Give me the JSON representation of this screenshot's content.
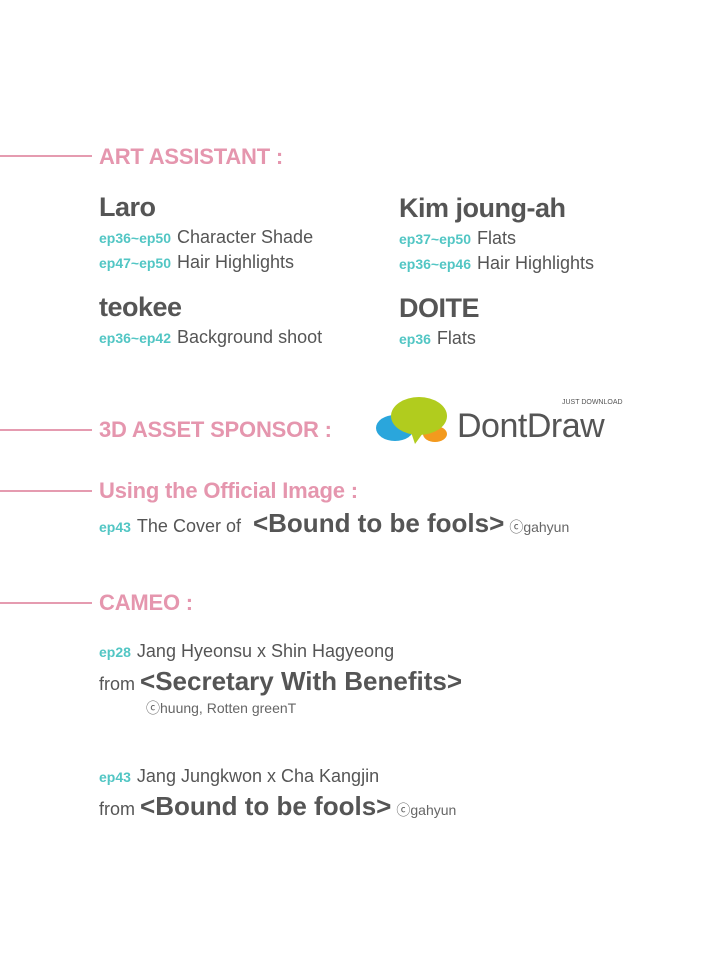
{
  "colors": {
    "heading": "#e596ae",
    "episode": "#52c6c4",
    "text": "#555555"
  },
  "art_assistant": {
    "heading": "ART ASSISTANT :",
    "people": [
      {
        "name": "Laro",
        "roles": [
          {
            "ep": "ep36~ep50",
            "task": "Character Shade"
          },
          {
            "ep": "ep47~ep50",
            "task": "Hair Highlights"
          }
        ]
      },
      {
        "name": "Kim joung-ah",
        "roles": [
          {
            "ep": "ep37~ep50",
            "task": "Flats"
          },
          {
            "ep": "ep36~ep46",
            "task": "Hair Highlights"
          }
        ]
      },
      {
        "name": "teokee",
        "roles": [
          {
            "ep": "ep36~ep42",
            "task": "Background shoot"
          }
        ]
      },
      {
        "name": "DOITE",
        "roles": [
          {
            "ep": "ep36",
            "task": "Flats"
          }
        ]
      }
    ]
  },
  "sponsor": {
    "heading": "3D ASSET SPONSOR :",
    "logo_text": "DontDraw",
    "logo_tagline": "JUST DOWNLOAD"
  },
  "official_image": {
    "heading": "Using the Official Image :",
    "ep": "ep43",
    "text": "The Cover of",
    "title": "<Bound to be fools>",
    "credit": "ⓒgahyun"
  },
  "cameo": {
    "heading": "CAMEO :",
    "items": [
      {
        "ep": "ep28",
        "names": "Jang Hyeonsu x Shin Hagyeong",
        "from": "from",
        "title": "<Secretary With Benefits>",
        "credit": "ⓒhuung, Rotten greenT"
      },
      {
        "ep": "ep43",
        "names": "Jang Jungkwon x Cha Kangjin",
        "from": "from",
        "title": "<Bound to be fools>",
        "credit": "ⓒgahyun"
      }
    ]
  }
}
